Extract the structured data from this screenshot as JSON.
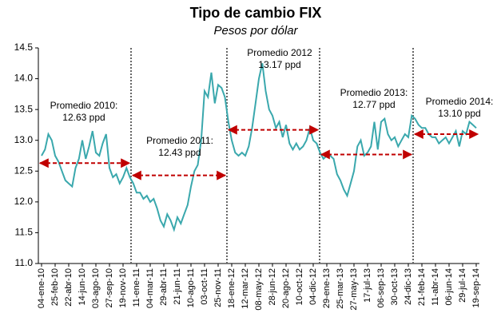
{
  "chart_data": {
    "type": "line",
    "title": "Tipo de cambio FIX",
    "subtitle": "Pesos por dólar",
    "categories": [
      "04-ene-10",
      null,
      null,
      null,
      "25-feb-10",
      null,
      null,
      null,
      "22-abr-10",
      null,
      null,
      null,
      "14-jun-10",
      null,
      null,
      null,
      "03-ago-10",
      null,
      null,
      null,
      "27-sep-10",
      null,
      null,
      null,
      "19-nov-10",
      null,
      null,
      null,
      "11-ene-11",
      null,
      null,
      null,
      "04-mar-11",
      null,
      null,
      null,
      "29-abr-11",
      null,
      null,
      null,
      "21-jun-11",
      null,
      null,
      null,
      "10-ago-11",
      null,
      null,
      null,
      "03-oct-11",
      null,
      null,
      null,
      "25-nov-11",
      null,
      null,
      null,
      "18-ene-12",
      null,
      null,
      null,
      "12-mar-12",
      null,
      null,
      null,
      "08-may-12",
      null,
      null,
      null,
      "28-jun-12",
      null,
      null,
      null,
      "20-ago-12",
      null,
      null,
      null,
      "10-oct-12",
      null,
      null,
      null,
      "04-dic-12",
      null,
      null,
      null,
      "29-ene-13",
      null,
      null,
      null,
      "25-mar-13",
      null,
      null,
      null,
      "27-may-13",
      null,
      null,
      null,
      "17-jul-13",
      null,
      null,
      null,
      "06-sep-13",
      null,
      null,
      null,
      "30-oct-13",
      null,
      null,
      null,
      "24-dic-13",
      null,
      null,
      null,
      "21-feb-14",
      null,
      null,
      null,
      "11-abr-14",
      null,
      null,
      null,
      "06-jun-14",
      null,
      null,
      null,
      "29-jul-14",
      null,
      null,
      null,
      "19-sep-14"
    ],
    "series": [
      {
        "color": "#3aa8ad",
        "values": [
          12.75,
          12.85,
          13.1,
          13.0,
          12.75,
          12.65,
          12.5,
          12.35,
          12.3,
          12.25,
          12.55,
          12.7,
          13.0,
          12.7,
          12.9,
          13.15,
          12.8,
          12.75,
          12.95,
          13.1,
          12.55,
          12.4,
          12.45,
          12.3,
          12.4,
          12.55,
          12.4,
          12.3,
          12.15,
          12.15,
          12.05,
          12.1,
          12.0,
          12.05,
          11.9,
          11.7,
          11.6,
          11.8,
          11.7,
          11.55,
          11.75,
          11.65,
          11.8,
          11.95,
          12.25,
          12.5,
          12.6,
          13.0,
          13.8,
          13.7,
          14.1,
          13.6,
          13.9,
          13.85,
          13.7,
          13.3,
          13.0,
          12.8,
          12.75,
          12.8,
          12.75,
          12.9,
          13.2,
          13.6,
          14.0,
          14.25,
          13.8,
          13.5,
          13.4,
          13.2,
          13.3,
          13.05,
          13.25,
          12.95,
          12.85,
          12.95,
          12.85,
          12.9,
          13.0,
          13.2,
          13.0,
          12.95,
          12.8,
          12.7,
          12.75,
          12.75,
          12.7,
          12.45,
          12.35,
          12.2,
          12.1,
          12.3,
          12.5,
          12.9,
          13.0,
          12.75,
          12.8,
          12.9,
          13.3,
          12.85,
          13.3,
          13.35,
          13.1,
          13.0,
          13.05,
          12.9,
          13.0,
          13.1,
          13.05,
          13.4,
          13.35,
          13.25,
          13.2,
          13.2,
          13.1,
          13.05,
          13.05,
          12.95,
          13.0,
          13.05,
          12.95,
          13.05,
          13.15,
          12.9,
          13.15,
          13.1,
          13.3,
          13.25,
          13.2
        ]
      }
    ],
    "ylim": [
      11.0,
      14.5
    ],
    "yticks": [
      {
        "value": 11.0,
        "label": "11.0"
      },
      11.5,
      {
        "value": 12.0,
        "label": "12.0"
      },
      12.5,
      {
        "value": 13.0,
        "label": "13.0"
      },
      13.5,
      {
        "value": 14.0,
        "label": "14.0"
      },
      14.5
    ],
    "averages": [
      {
        "label": "Promedio 2010:",
        "value": 12.63,
        "value_label": "12.63 ppd"
      },
      {
        "label": "Promedio 2011:",
        "value": 12.43,
        "value_label": "12.43 ppd"
      },
      {
        "label": "Promedio 2012",
        "value": 13.17,
        "value_label": "13.17 ppd"
      },
      {
        "label": "Promedio 2013:",
        "value": 12.77,
        "value_label": "12.77 ppd"
      },
      {
        "label": "Promedio 2014:",
        "value": 13.1,
        "value_label": "13.10 ppd"
      }
    ],
    "average_color": "#c00000"
  }
}
